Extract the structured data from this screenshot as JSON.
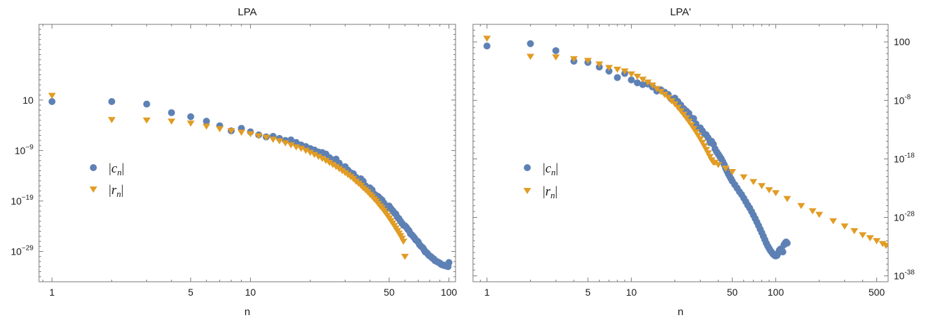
{
  "chart_data": [
    {
      "type": "scatter",
      "title": "LPA",
      "xlabel": "n",
      "ylabel": "",
      "x_scale": "log",
      "y_scale": "log",
      "xlim": [
        0.86,
        108
      ],
      "ylim_exponent": [
        -35,
        16
      ],
      "x_ticks": [
        1,
        5,
        10,
        50,
        100
      ],
      "y_ticks": [
        {
          "exp": 1,
          "label": "10"
        },
        {
          "exp": -9,
          "base": "10",
          "sup": "−9"
        },
        {
          "exp": -19,
          "base": "10",
          "sup": "−19"
        },
        {
          "exp": -29,
          "base": "10",
          "sup": "−29"
        }
      ],
      "legend_position": "center-left",
      "series": [
        {
          "name": "|c_n|",
          "marker": "circle",
          "color": "#5e81b5",
          "x": [
            1,
            2,
            3,
            4,
            5,
            6,
            7,
            8,
            9,
            10,
            11,
            12,
            13,
            14,
            15,
            16,
            17,
            18,
            19,
            20,
            21,
            22,
            23,
            24,
            25,
            26,
            27,
            28,
            29,
            30,
            31,
            32,
            33,
            34,
            35,
            36,
            37,
            38,
            39,
            40,
            41,
            42,
            43,
            44,
            45,
            46,
            47,
            48,
            49,
            50,
            51,
            52,
            53,
            54,
            55,
            56,
            57,
            58,
            59,
            60,
            61,
            62,
            63,
            64,
            65,
            66,
            67,
            68,
            69,
            70,
            71,
            72,
            73,
            74,
            75,
            76,
            77,
            78,
            79,
            80,
            81,
            82,
            83,
            84,
            85,
            86,
            87,
            88,
            89,
            90,
            91,
            92,
            93,
            94,
            95,
            96,
            97,
            98,
            99,
            100
          ],
          "y_exponent": [
            0.7,
            0.7,
            0.2,
            -1.5,
            -2.3,
            -3.2,
            -4.1,
            -5.1,
            -4.6,
            -5.3,
            -5.9,
            -6.3,
            -6.2,
            -6.6,
            -7,
            -6.9,
            -7.4,
            -7.9,
            -8.2,
            -8.6,
            -8.9,
            -9.3,
            -9.4,
            -9.7,
            -10.4,
            -10.9,
            -10.7,
            -11.5,
            -12.3,
            -12.2,
            -12.9,
            -13.4,
            -13.6,
            -14.3,
            -15,
            -14.6,
            -15.1,
            -16,
            -16.5,
            -16.4,
            -16.8,
            -17.6,
            -17.9,
            -18.1,
            -18.5,
            -18.8,
            -19.4,
            -19.9,
            -20.3,
            -20,
            -20.5,
            -20.9,
            -21.3,
            -21.6,
            -22.2,
            -22.5,
            -23,
            -23.4,
            -23.8,
            -23.9,
            -24.2,
            -24.6,
            -24.9,
            -25.5,
            -25.7,
            -26,
            -26.3,
            -26.7,
            -26.9,
            -27.1,
            -27.6,
            -27.9,
            -28.1,
            -28.3,
            -28.7,
            -29.1,
            -29.2,
            -29.4,
            -29.7,
            -29.9,
            -30,
            -30.2,
            -30.4,
            -30.5,
            -30.8,
            -30.9,
            -31,
            -31.1,
            -31.2,
            -31.3,
            -31.5,
            -31.6,
            -31.7,
            -31.7,
            -31.8,
            -31.8,
            -31.9,
            -31.9,
            -32,
            -31.2
          ]
        },
        {
          "name": "|r_n|",
          "marker": "triangle-down",
          "color": "#e19c24",
          "x": [
            1,
            2,
            3,
            4,
            5,
            6,
            7,
            8,
            9,
            10,
            11,
            12,
            13,
            14,
            15,
            16,
            17,
            18,
            19,
            20,
            21,
            22,
            23,
            24,
            25,
            26,
            27,
            28,
            29,
            30,
            31,
            32,
            33,
            34,
            35,
            36,
            37,
            38,
            39,
            40,
            41,
            42,
            43,
            44,
            45,
            46,
            47,
            48,
            49,
            50,
            51,
            52,
            53,
            54,
            55,
            56,
            57,
            58,
            59,
            60
          ],
          "y_exponent": [
            1.9,
            -2.9,
            -3,
            -3.2,
            -3.6,
            -4.2,
            -4.7,
            -5.1,
            -5.4,
            -5.7,
            -6.1,
            -6.4,
            -6.8,
            -7.1,
            -7.5,
            -7.9,
            -8.3,
            -8.6,
            -9,
            -9.4,
            -9.8,
            -10.2,
            -10.6,
            -11,
            -11.4,
            -11.8,
            -12.2,
            -12.6,
            -13,
            -13.4,
            -13.8,
            -14.2,
            -14.6,
            -15.1,
            -15.5,
            -15.9,
            -16.4,
            -16.8,
            -17.2,
            -17.7,
            -18.1,
            -18.6,
            -19,
            -19.5,
            -20,
            -20.4,
            -20.9,
            -21.4,
            -21.9,
            -22.4,
            -22.9,
            -23.4,
            -23.9,
            -24.4,
            -24.9,
            -25.4,
            -25.9,
            -26.4,
            -27,
            -30
          ]
        }
      ]
    },
    {
      "type": "scatter",
      "title": "LPA'",
      "xlabel": "n",
      "ylabel": "",
      "x_scale": "log",
      "y_scale": "log",
      "xlim": [
        0.8,
        600
      ],
      "ylim_exponent": [
        -39,
        5
      ],
      "x_ticks": [
        1,
        5,
        10,
        50,
        100,
        500
      ],
      "y_ticks": [
        {
          "exp": 2,
          "label": "100"
        },
        {
          "exp": -8,
          "base": "10",
          "sup": "-8"
        },
        {
          "exp": -18,
          "base": "10",
          "sup": "-18"
        },
        {
          "exp": -28,
          "base": "10",
          "sup": "-28"
        },
        {
          "exp": -38,
          "base": "10",
          "sup": "-38"
        }
      ],
      "legend_position": "center-left",
      "series": [
        {
          "name": "|c_n|",
          "marker": "circle",
          "color": "#5e81b5",
          "x": [
            1,
            2,
            3,
            4,
            5,
            6,
            7,
            8,
            9,
            10,
            11,
            12,
            13,
            14,
            15,
            16,
            17,
            18,
            19,
            20,
            21,
            22,
            23,
            24,
            25,
            26,
            27,
            28,
            29,
            30,
            31,
            32,
            33,
            34,
            35,
            36,
            37,
            38,
            39,
            40,
            41,
            42,
            43,
            44,
            45,
            46,
            47,
            48,
            49,
            50,
            52,
            54,
            56,
            58,
            60,
            62,
            64,
            66,
            68,
            70,
            72,
            74,
            76,
            78,
            80,
            82,
            84,
            86,
            88,
            90,
            92,
            94,
            96,
            98,
            100,
            102,
            104,
            106,
            108,
            110,
            112,
            114,
            116,
            118,
            120
          ],
          "y_exponent": [
            1.3,
            1.7,
            0.5,
            -1.3,
            -1.5,
            -2.3,
            -3,
            -4.1,
            -3.4,
            -4.5,
            -5,
            -5.3,
            -5.2,
            -5.7,
            -6.4,
            -6.2,
            -6.6,
            -7,
            -7.8,
            -7.6,
            -8.2,
            -8.8,
            -9.4,
            -9.8,
            -10.2,
            -11,
            -11.1,
            -12,
            -12.7,
            -12.7,
            -13.2,
            -13.7,
            -13.9,
            -14.4,
            -15.2,
            -15,
            -15.5,
            -16.3,
            -16.8,
            -17.2,
            -17.6,
            -18,
            -18.5,
            -19,
            -19.6,
            -20.1,
            -20.6,
            -21,
            -21.4,
            -21.8,
            -22.4,
            -23,
            -23.6,
            -24.1,
            -24.7,
            -25.3,
            -25.9,
            -26.4,
            -27,
            -27.6,
            -28.2,
            -28.8,
            -29.4,
            -30,
            -30.6,
            -31.2,
            -31.8,
            -32.4,
            -32.9,
            -33.3,
            -33.7,
            -34,
            -34.3,
            -34.5,
            -34.6,
            -34.5,
            -34.1,
            -33.6,
            -33.4,
            -33.6,
            -33.9,
            -32.7,
            -32.4,
            -32.2,
            -32.4
          ]
        },
        {
          "name": "|r_n|",
          "marker": "triangle-down",
          "color": "#e19c24",
          "x": [
            1,
            2,
            3,
            4,
            5,
            6,
            7,
            8,
            9,
            10,
            11,
            12,
            13,
            14,
            15,
            16,
            17,
            18,
            19,
            20,
            21,
            22,
            23,
            24,
            25,
            26,
            27,
            28,
            29,
            30,
            31,
            32,
            33,
            34,
            35,
            36,
            37,
            38,
            40,
            45,
            50,
            60,
            70,
            80,
            90,
            100,
            120,
            150,
            180,
            200,
            250,
            300,
            350,
            400,
            450,
            500,
            550,
            580
          ],
          "y_exponent": [
            2.6,
            -0.5,
            -0.6,
            -0.9,
            -1.2,
            -1.8,
            -2.4,
            -2.7,
            -3,
            -3.5,
            -3.9,
            -4.4,
            -4.9,
            -5.4,
            -6,
            -6.5,
            -7,
            -7.5,
            -8.1,
            -8.6,
            -9.2,
            -9.8,
            -10.4,
            -11,
            -11.6,
            -12.2,
            -12.8,
            -13.4,
            -14,
            -14.6,
            -15.2,
            -15.8,
            -16.4,
            -17,
            -17.6,
            -18.2,
            -18.6,
            -18.6,
            -19,
            -19.6,
            -20.2,
            -21.1,
            -21.9,
            -22.6,
            -23.3,
            -23.8,
            -24.8,
            -26,
            -26.9,
            -27.5,
            -28.6,
            -29.5,
            -30.3,
            -31,
            -31.5,
            -32,
            -32.5,
            -32.8
          ]
        }
      ]
    }
  ]
}
